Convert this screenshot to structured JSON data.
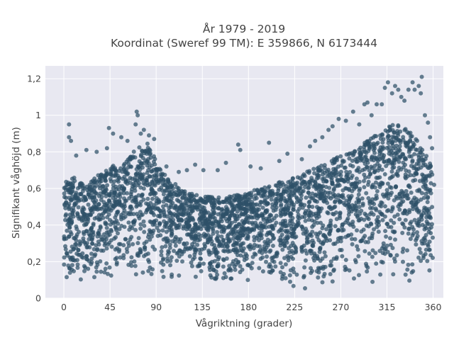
{
  "chart_data": {
    "type": "scatter",
    "title_line1": "År 1979 - 2019",
    "title_line2": "Koordinat (Sweref 99 TM): E 359866, N 6173444",
    "xlabel": "Vågriktning (grader)",
    "ylabel": "Signifikant våghöjd (m)",
    "xlim": [
      -18,
      370
    ],
    "ylim": [
      0,
      1.27
    ],
    "xticks": [
      0,
      45,
      90,
      135,
      180,
      225,
      270,
      315,
      360
    ],
    "xtick_labels": [
      "0",
      "45",
      "90",
      "135",
      "180",
      "225",
      "270",
      "315",
      "360"
    ],
    "yticks": [
      0,
      0.2,
      0.4,
      0.6,
      0.8,
      1.0,
      1.2
    ],
    "ytick_labels": [
      "0",
      "0,2",
      "0,4",
      "0,6",
      "0,8",
      "1",
      "1,2"
    ],
    "grid": true,
    "colors": {
      "marker": "#2e5068",
      "plot_bg": "#e8e8f1",
      "grid": "#ffffff"
    },
    "series": [
      {
        "x_range": [
          0,
          360
        ],
        "y_range": [
          0.05,
          1.21
        ],
        "upper_envelope": {
          "x": [
            0,
            10,
            20,
            30,
            45,
            60,
            70,
            80,
            90,
            100,
            110,
            120,
            135,
            150,
            165,
            180,
            200,
            225,
            240,
            255,
            270,
            285,
            300,
            310,
            320,
            330,
            340,
            350,
            360
          ],
          "y": [
            0.64,
            0.66,
            0.62,
            0.66,
            0.72,
            0.74,
            0.82,
            0.86,
            0.76,
            0.66,
            0.62,
            0.58,
            0.56,
            0.55,
            0.56,
            0.58,
            0.62,
            0.66,
            0.7,
            0.74,
            0.78,
            0.82,
            0.88,
            0.92,
            0.96,
            0.94,
            0.9,
            0.82,
            0.7
          ]
        },
        "points": [
          [
            5,
            0.95
          ],
          [
            5,
            0.88
          ],
          [
            7,
            0.86
          ],
          [
            12,
            0.78
          ],
          [
            22,
            0.81
          ],
          [
            32,
            0.8
          ],
          [
            42,
            0.82
          ],
          [
            44,
            0.93
          ],
          [
            48,
            0.9
          ],
          [
            56,
            0.88
          ],
          [
            62,
            0.86
          ],
          [
            70,
            0.95
          ],
          [
            71,
            1.02
          ],
          [
            72,
            1.0
          ],
          [
            75,
            0.9
          ],
          [
            78,
            0.92
          ],
          [
            83,
            0.89
          ],
          [
            88,
            0.87
          ],
          [
            100,
            0.72
          ],
          [
            112,
            0.69
          ],
          [
            120,
            0.7
          ],
          [
            128,
            0.73
          ],
          [
            136,
            0.7
          ],
          [
            150,
            0.7
          ],
          [
            158,
            0.74
          ],
          [
            170,
            0.84
          ],
          [
            172,
            0.81
          ],
          [
            182,
            0.72
          ],
          [
            192,
            0.71
          ],
          [
            200,
            0.85
          ],
          [
            210,
            0.75
          ],
          [
            218,
            0.79
          ],
          [
            232,
            0.76
          ],
          [
            240,
            0.83
          ],
          [
            245,
            0.86
          ],
          [
            252,
            0.88
          ],
          [
            258,
            0.92
          ],
          [
            262,
            0.94
          ],
          [
            268,
            0.98
          ],
          [
            275,
            0.97
          ],
          [
            282,
            1.02
          ],
          [
            288,
            0.95
          ],
          [
            293,
            1.06
          ],
          [
            296,
            1.07
          ],
          [
            300,
            1.0
          ],
          [
            305,
            1.06
          ],
          [
            310,
            1.06
          ],
          [
            313,
            1.15
          ],
          [
            316,
            1.18
          ],
          [
            320,
            1.12
          ],
          [
            323,
            1.16
          ],
          [
            326,
            1.14
          ],
          [
            329,
            1.1
          ],
          [
            332,
            1.08
          ],
          [
            336,
            1.14
          ],
          [
            340,
            1.18
          ],
          [
            342,
            1.14
          ],
          [
            346,
            1.16
          ],
          [
            348,
            1.12
          ],
          [
            349,
            1.21
          ],
          [
            352,
            1.0
          ],
          [
            355,
            0.96
          ],
          [
            357,
            0.88
          ],
          [
            359,
            0.82
          ],
          [
            361,
            0.62
          ]
        ]
      }
    ]
  }
}
